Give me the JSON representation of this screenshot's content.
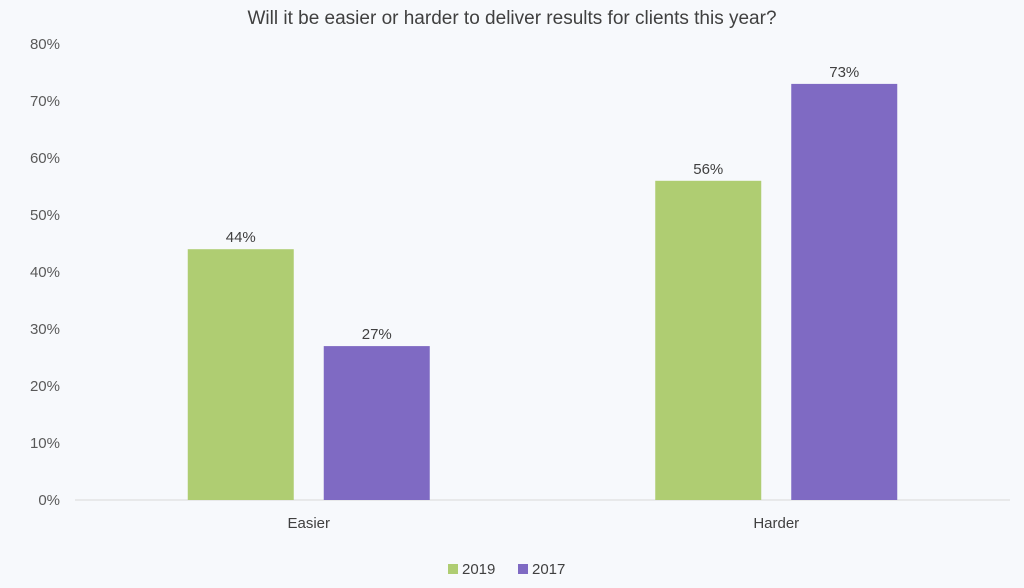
{
  "chart_data": {
    "type": "bar",
    "title": "Will it be easier or harder to deliver results for clients this year?",
    "categories": [
      "Easier",
      "Harder"
    ],
    "series": [
      {
        "name": "2019",
        "values": [
          44,
          56
        ],
        "labels": [
          "44%",
          "56%"
        ],
        "color": "#afcd72"
      },
      {
        "name": "2017",
        "values": [
          27,
          73
        ],
        "labels": [
          "27%",
          "73%"
        ],
        "color": "#7f6ac3"
      }
    ],
    "ylim": [
      0,
      80
    ],
    "yticks": [
      0,
      10,
      20,
      30,
      40,
      50,
      60,
      70,
      80
    ],
    "ytick_labels": [
      "0%",
      "10%",
      "20%",
      "30%",
      "40%",
      "50%",
      "60%",
      "70%",
      "80%"
    ],
    "xlabel": "",
    "ylabel": "",
    "grid": false,
    "legend_position": "bottom-center"
  },
  "colors": {
    "background": "#f7f9fc",
    "axis_line": "#d9d9d9"
  }
}
